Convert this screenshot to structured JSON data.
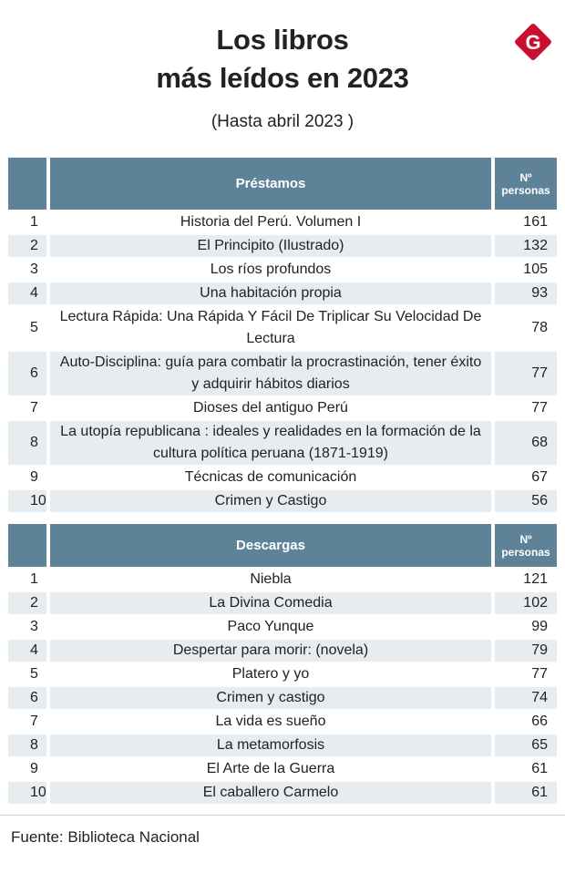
{
  "header": {
    "title_line1": "Los libros",
    "title_line2": "más leídos en 2023",
    "subtitle": "(Hasta abril 2023 )",
    "logo": "G"
  },
  "tables": [
    {
      "heading": "Préstamos",
      "count_heading": "Nº personas",
      "rows": [
        [
          1,
          "Historia del Perú. Volumen I",
          161
        ],
        [
          2,
          "El Principito (Ilustrado)",
          132
        ],
        [
          3,
          "Los ríos profundos",
          105
        ],
        [
          4,
          "Una habitación propia",
          93
        ],
        [
          5,
          "Lectura Rápida: Una Rápida Y Fácil De Triplicar Su Velocidad De Lectura",
          78
        ],
        [
          6,
          "Auto-Disciplina: guía para combatir la procrastinación, tener éxito y adquirir hábitos diarios",
          77
        ],
        [
          7,
          "Dioses del antiguo Perú",
          77
        ],
        [
          8,
          "La utopía republicana : ideales y realidades en la formación de la cultura política peruana (1871-1919)",
          68
        ],
        [
          9,
          "Técnicas de comunicación",
          67
        ],
        [
          10,
          "Crimen y Castigo",
          56
        ]
      ]
    },
    {
      "heading": "Descargas",
      "count_heading": "Nº personas",
      "rows": [
        [
          1,
          "Niebla",
          121
        ],
        [
          2,
          "La Divina Comedia",
          102
        ],
        [
          3,
          "Paco Yunque",
          99
        ],
        [
          4,
          "Despertar para morir: (novela)",
          79
        ],
        [
          5,
          "Platero y yo",
          77
        ],
        [
          6,
          "Crimen y castigo",
          74
        ],
        [
          7,
          "La vida es sueño",
          66
        ],
        [
          8,
          "La metamorfosis",
          65
        ],
        [
          9,
          "El Arte de la Guerra",
          61
        ],
        [
          10,
          "El caballero Carmelo",
          61
        ]
      ]
    }
  ],
  "footer": {
    "source": "Fuente: Biblioteca Nacional"
  }
}
